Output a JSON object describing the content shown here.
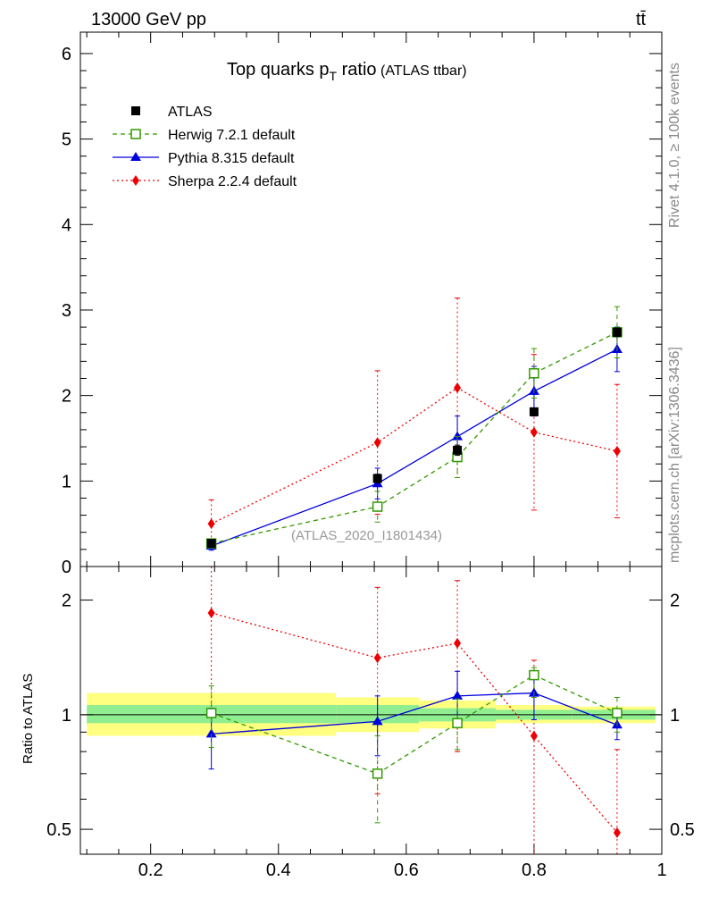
{
  "header": {
    "energy": "13000 GeV pp",
    "process": "tt̄"
  },
  "title": {
    "main": "Top quarks p",
    "sub": "T",
    "rest": " ratio",
    "tag": " (ATLAS ttbar)"
  },
  "side": {
    "rivet": "Rivet 4.1.0, ≥ 100k events",
    "site": "mcplots.cern.ch [arXiv:1306.3436]"
  },
  "analysis_id": "(ATLAS_2020_I1801434)",
  "ratio_ylabel": "Ratio to ATLAS",
  "colors": {
    "herwig": "#339900",
    "pythia": "#0000dd",
    "sherpa": "#ee0000",
    "data": "#000000",
    "band_inner": "#90ee90",
    "band_outer": "#ffff80"
  },
  "chart_data": {
    "type": "scatter",
    "xlim": [
      0.09,
      1.0
    ],
    "main": {
      "ylim": [
        0,
        6.25
      ],
      "yticks": [
        "0",
        "1",
        "2",
        "3",
        "4",
        "5",
        "6"
      ],
      "xticks": [
        "0.2",
        "0.4",
        "0.6",
        "0.8",
        "1"
      ],
      "series": [
        {
          "name": "ATLAS",
          "key": "data",
          "marker": "square",
          "x": [
            0.295,
            0.555,
            0.68,
            0.8,
            0.93
          ],
          "y": [
            0.27,
            1.03,
            1.36,
            1.81,
            2.74
          ],
          "err": [
            0.01,
            0.05,
            0.06,
            0.04,
            0.05
          ]
        },
        {
          "name": "Herwig 7.2.1 default",
          "key": "herwig",
          "marker": "open-square",
          "dash": "5,4",
          "x": [
            0.295,
            0.555,
            0.68,
            0.8,
            0.93
          ],
          "y": [
            0.27,
            0.7,
            1.28,
            2.26,
            2.74
          ],
          "err": [
            0.04,
            0.18,
            0.24,
            0.29,
            0.3
          ]
        },
        {
          "name": "Pythia 8.315 default",
          "key": "pythia",
          "marker": "triangle",
          "dash": "",
          "x": [
            0.295,
            0.555,
            0.68,
            0.8,
            0.93
          ],
          "y": [
            0.24,
            0.97,
            1.52,
            2.05,
            2.54
          ],
          "err": [
            0.05,
            0.18,
            0.24,
            0.29,
            0.26
          ]
        },
        {
          "name": "Sherpa 2.2.4 default",
          "key": "sherpa",
          "marker": "diamond",
          "dash": "2,3",
          "x": [
            0.295,
            0.555,
            0.68,
            0.8,
            0.93
          ],
          "y": [
            0.5,
            1.45,
            2.09,
            1.57,
            1.35
          ],
          "err": [
            0.28,
            0.84,
            1.05,
            0.91,
            0.78
          ]
        }
      ]
    },
    "ratio": {
      "ylim": [
        0.43,
        2.45
      ],
      "log": true,
      "yticks": [
        "0.5",
        "1",
        "2"
      ],
      "band": {
        "edges": [
          0.1,
          0.49,
          0.62,
          0.74,
          0.86,
          0.99
        ],
        "inner": [
          [
            0.95,
            1.06
          ],
          [
            0.95,
            1.06
          ],
          [
            0.96,
            1.04
          ],
          [
            0.97,
            1.03
          ],
          [
            0.97,
            1.03
          ]
        ],
        "outer": [
          [
            0.88,
            1.14
          ],
          [
            0.9,
            1.11
          ],
          [
            0.92,
            1.09
          ],
          [
            0.95,
            1.06
          ],
          [
            0.95,
            1.05
          ]
        ]
      },
      "series": [
        {
          "key": "herwig",
          "x": [
            0.295,
            0.555,
            0.68,
            0.8,
            0.93
          ],
          "y": [
            1.01,
            0.7,
            0.95,
            1.27,
            1.01
          ],
          "lo": [
            0.82,
            0.52,
            0.81,
            1.11,
            0.9
          ],
          "hi": [
            1.19,
            0.88,
            1.1,
            1.33,
            1.11
          ]
        },
        {
          "key": "pythia",
          "x": [
            0.295,
            0.555,
            0.68,
            0.8,
            0.93
          ],
          "y": [
            0.89,
            0.96,
            1.12,
            1.14,
            0.94
          ],
          "lo": [
            0.72,
            0.78,
            0.93,
            0.97,
            0.86
          ],
          "hi": [
            1.04,
            1.12,
            1.3,
            1.29,
            1.03
          ]
        },
        {
          "key": "sherpa",
          "x": [
            0.295,
            0.555,
            0.68,
            0.8,
            0.93
          ],
          "y": [
            1.85,
            1.41,
            1.54,
            0.88,
            0.49
          ],
          "lo": [
            1.0,
            0.62,
            0.8,
            0.36,
            0.2
          ],
          "hi": [
            2.45,
            2.16,
            2.25,
            1.39,
            0.81
          ]
        }
      ]
    }
  }
}
